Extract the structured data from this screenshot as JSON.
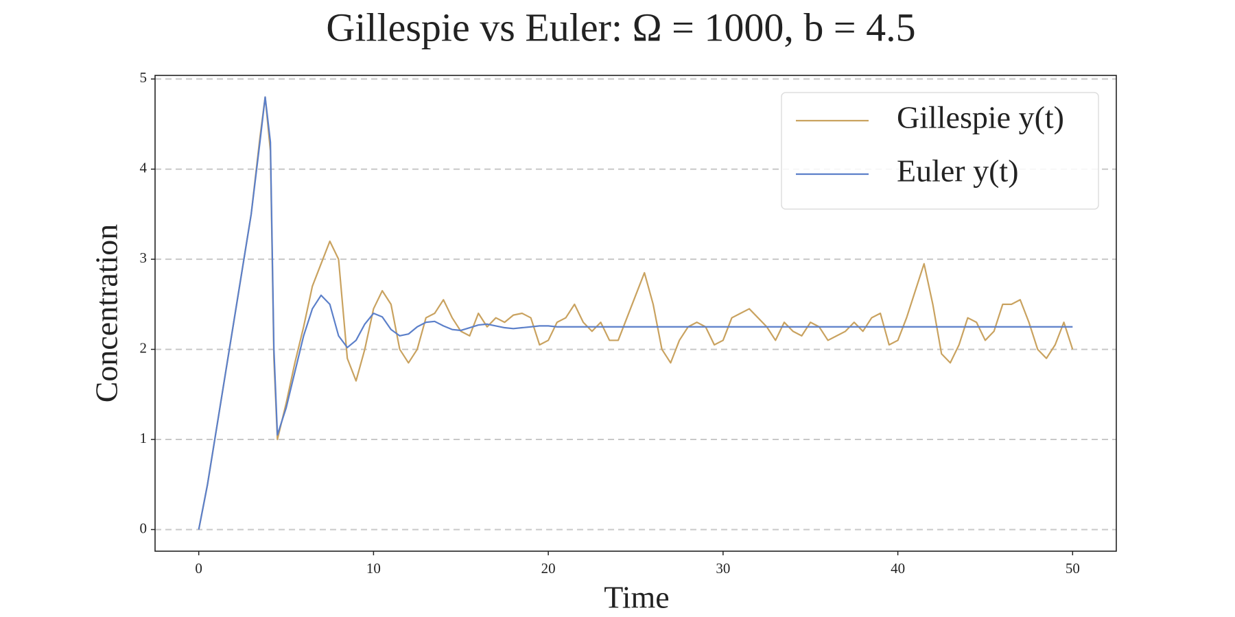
{
  "chart_data": {
    "type": "line",
    "title": "Gillespie vs Euler: Ω = 1000, b = 4.5",
    "x_label": "Time",
    "y_label": "Concentration",
    "x": [
      0,
      0.5,
      1,
      1.5,
      2,
      2.5,
      3,
      3.5,
      3.8,
      4.1,
      4.3,
      4.5,
      5,
      5.5,
      6,
      6.5,
      7,
      7.5,
      8,
      8.5,
      9,
      9.5,
      10,
      10.5,
      11,
      11.5,
      12,
      12.5,
      13,
      13.5,
      14,
      14.5,
      15,
      15.5,
      16,
      16.5,
      17,
      17.5,
      18,
      18.5,
      19,
      19.5,
      20,
      20.5,
      21,
      21.5,
      22,
      22.5,
      23,
      23.5,
      24,
      24.5,
      25,
      25.5,
      26,
      26.5,
      27,
      27.5,
      28,
      28.5,
      29,
      29.5,
      30,
      30.5,
      31,
      31.5,
      32,
      32.5,
      33,
      33.5,
      34,
      34.5,
      35,
      35.5,
      36,
      36.5,
      37,
      37.5,
      38,
      38.5,
      39,
      39.5,
      40,
      40.5,
      41,
      41.5,
      42,
      42.5,
      43,
      43.5,
      44,
      44.5,
      45,
      45.5,
      46,
      46.5,
      47,
      47.5,
      48,
      48.5,
      49,
      49.5,
      50
    ],
    "series": [
      {
        "name": "Gillespie y(t)",
        "color": "#c9a25f",
        "values": [
          0,
          0.5,
          1.1,
          1.7,
          2.3,
          2.9,
          3.5,
          4.35,
          4.8,
          4.2,
          1.9,
          1.0,
          1.4,
          1.85,
          2.25,
          2.7,
          2.95,
          3.2,
          3.0,
          1.9,
          1.65,
          2.0,
          2.45,
          2.65,
          2.5,
          2.0,
          1.85,
          2.0,
          2.35,
          2.4,
          2.55,
          2.35,
          2.2,
          2.15,
          2.4,
          2.25,
          2.35,
          2.3,
          2.38,
          2.4,
          2.35,
          2.05,
          2.1,
          2.3,
          2.35,
          2.5,
          2.3,
          2.2,
          2.3,
          2.1,
          2.1,
          2.35,
          2.6,
          2.85,
          2.5,
          2.0,
          1.85,
          2.1,
          2.25,
          2.3,
          2.25,
          2.05,
          2.1,
          2.35,
          2.4,
          2.45,
          2.35,
          2.25,
          2.1,
          2.3,
          2.2,
          2.15,
          2.3,
          2.25,
          2.1,
          2.15,
          2.2,
          2.3,
          2.2,
          2.35,
          2.4,
          2.05,
          2.1,
          2.35,
          2.65,
          2.95,
          2.5,
          1.95,
          1.85,
          2.05,
          2.35,
          2.3,
          2.1,
          2.2,
          2.5,
          2.5,
          2.55,
          2.3,
          2.0,
          1.9,
          2.05,
          2.3,
          2.0
        ]
      },
      {
        "name": "Euler y(t)",
        "color": "#5b7fc9",
        "values": [
          0,
          0.5,
          1.1,
          1.7,
          2.3,
          2.9,
          3.5,
          4.3,
          4.8,
          4.3,
          2.0,
          1.05,
          1.35,
          1.75,
          2.15,
          2.45,
          2.6,
          2.5,
          2.15,
          2.02,
          2.1,
          2.28,
          2.4,
          2.36,
          2.22,
          2.15,
          2.17,
          2.25,
          2.3,
          2.31,
          2.26,
          2.22,
          2.21,
          2.24,
          2.27,
          2.28,
          2.26,
          2.24,
          2.23,
          2.24,
          2.25,
          2.26,
          2.26,
          2.25,
          2.25,
          2.25,
          2.25,
          2.25,
          2.25,
          2.25,
          2.25,
          2.25,
          2.25,
          2.25,
          2.25,
          2.25,
          2.25,
          2.25,
          2.25,
          2.25,
          2.25,
          2.25,
          2.25,
          2.25,
          2.25,
          2.25,
          2.25,
          2.25,
          2.25,
          2.25,
          2.25,
          2.25,
          2.25,
          2.25,
          2.25,
          2.25,
          2.25,
          2.25,
          2.25,
          2.25,
          2.25,
          2.25,
          2.25,
          2.25,
          2.25,
          2.25,
          2.25,
          2.25,
          2.25,
          2.25,
          2.25,
          2.25,
          2.25,
          2.25,
          2.25,
          2.25,
          2.25,
          2.25,
          2.25,
          2.25,
          2.25,
          2.25,
          2.25
        ]
      }
    ],
    "xlim": [
      -2.5,
      52.5
    ],
    "xticks": [
      0,
      10,
      20,
      30,
      40,
      50
    ],
    "ylim": [
      -0.24,
      5.04
    ],
    "yticks": [
      0,
      1,
      2,
      3,
      4,
      5
    ],
    "grid": true,
    "legend": "upper right"
  }
}
